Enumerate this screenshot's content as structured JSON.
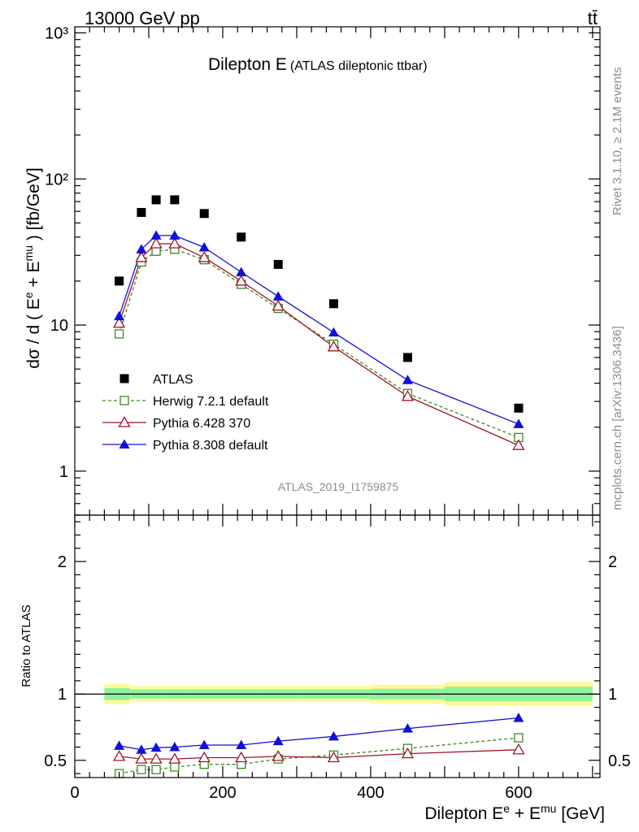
{
  "header": {
    "beam": "13000 GeV pp",
    "process": "tt̄"
  },
  "side_text": {
    "rivet": "Rivet 3.1.10, ≥ 2.1M events",
    "site": "mcplots.cern.ch [arXiv:1306.3436]"
  },
  "analysis_id": "ATLAS_2019_I1759875",
  "chart_data": [
    {
      "type": "line",
      "title_main": "Dilepton E",
      "title_sub": "(ATLAS dileptonic ttbar)",
      "ylabel": "dσ / d ( E^e + E^mu ) [fb/GeV]",
      "yscale": "log",
      "ylim": [
        0.5,
        1100
      ],
      "xlim": [
        0,
        710
      ],
      "yticks": [
        {
          "v": 1,
          "label": "1"
        },
        {
          "v": 10,
          "label": "10"
        },
        {
          "v": 100,
          "label": "10²"
        },
        {
          "v": 1000,
          "label": "10³"
        }
      ],
      "legend_position": "bottom-left",
      "x": [
        60,
        90,
        110,
        135,
        175,
        225,
        275,
        350,
        450,
        600
      ],
      "series": [
        {
          "name": "ATLAS",
          "marker": "square-filled",
          "color": "#000000",
          "line": "none",
          "values": [
            20,
            59,
            72,
            72,
            58,
            40,
            26,
            14,
            6,
            2.7
          ]
        },
        {
          "name": "Herwig 7.2.1 default",
          "marker": "square-open",
          "color": "#3a8a1e",
          "line": "dashed",
          "values": [
            8.7,
            27,
            32,
            33,
            28,
            19,
            13,
            7.4,
            3.4,
            1.7
          ]
        },
        {
          "name": "Pythia 6.428 370",
          "marker": "triangle-open",
          "color": "#a0142a",
          "line": "solid",
          "values": [
            10.3,
            29,
            36,
            36,
            29,
            20,
            13.5,
            7.1,
            3.25,
            1.5
          ]
        },
        {
          "name": "Pythia 8.308 default",
          "marker": "triangle-filled",
          "color": "#1010d8",
          "line": "solid",
          "values": [
            11.5,
            33,
            41,
            41,
            34,
            23,
            15.7,
            8.9,
            4.2,
            2.1
          ]
        }
      ]
    },
    {
      "type": "line",
      "ylabel": "Ratio to ATLAS",
      "xlabel": "Dilepton E^e + E^mu [GeV]",
      "xlim": [
        0,
        710
      ],
      "ylim": [
        0.37,
        2.35
      ],
      "xticks": [
        {
          "v": 0,
          "label": "0"
        },
        {
          "v": 200,
          "label": "200"
        },
        {
          "v": 400,
          "label": "400"
        },
        {
          "v": 600,
          "label": "600"
        }
      ],
      "yticks": [
        {
          "v": 0.5,
          "label": "0.5"
        },
        {
          "v": 1,
          "label": "1"
        },
        {
          "v": 2,
          "label": "2"
        }
      ],
      "bins": [
        [
          40,
          75
        ],
        [
          75,
          100
        ],
        [
          100,
          120
        ],
        [
          120,
          150
        ],
        [
          150,
          200
        ],
        [
          200,
          250
        ],
        [
          250,
          300
        ],
        [
          300,
          400
        ],
        [
          400,
          500
        ],
        [
          500,
          700
        ]
      ],
      "band_inner": [
        0.045,
        0.035,
        0.035,
        0.035,
        0.035,
        0.035,
        0.035,
        0.035,
        0.04,
        0.055
      ],
      "band_outer": [
        0.075,
        0.06,
        0.06,
        0.06,
        0.06,
        0.06,
        0.06,
        0.06,
        0.07,
        0.09
      ],
      "x": [
        60,
        90,
        110,
        135,
        175,
        225,
        275,
        350,
        450,
        600
      ],
      "series": [
        {
          "name": "Herwig 7.2.1 default",
          "marker": "square-open",
          "color": "#3a8a1e",
          "line": "dashed",
          "values": [
            0.4,
            0.43,
            0.43,
            0.45,
            0.47,
            0.47,
            0.51,
            0.54,
            0.59,
            0.67
          ]
        },
        {
          "name": "Pythia 6.428 370",
          "marker": "triangle-open",
          "color": "#a0142a",
          "line": "solid",
          "values": [
            0.53,
            0.51,
            0.51,
            0.51,
            0.52,
            0.52,
            0.53,
            0.52,
            0.55,
            0.58
          ]
        },
        {
          "name": "Pythia 8.308 default",
          "marker": "triangle-filled",
          "color": "#1010d8",
          "line": "solid",
          "values": [
            0.61,
            0.58,
            0.595,
            0.6,
            0.615,
            0.615,
            0.645,
            0.68,
            0.74,
            0.82
          ]
        }
      ]
    }
  ]
}
